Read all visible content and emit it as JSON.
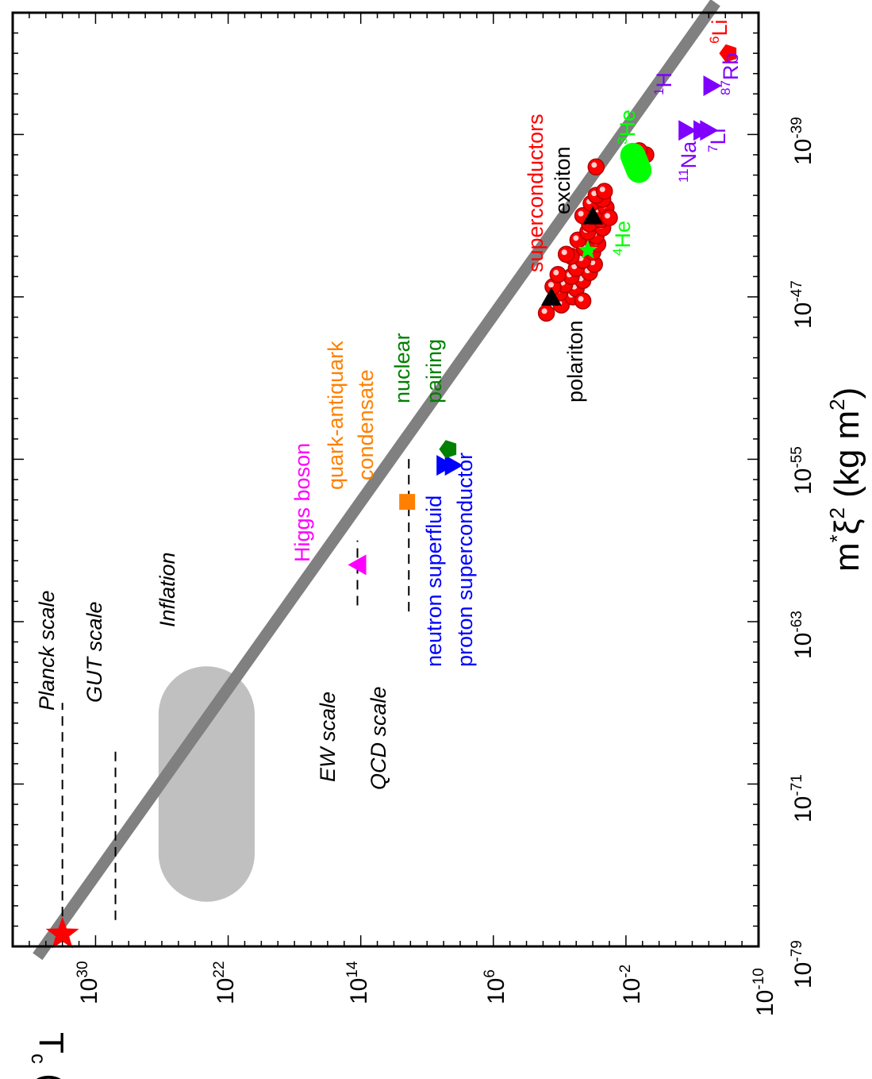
{
  "chart_data": {
    "type": "scatter",
    "orientation": "rotated 90 degrees counter-clockwise",
    "xlabel": "m*ξ² (kg m²)",
    "ylabel": "T_c (K)",
    "xscale": "log",
    "yscale": "log",
    "xlim_exp": [
      -79,
      -33
    ],
    "ylim_exp": [
      -10,
      35
    ],
    "x_ticks": [
      {
        "base": "10",
        "exp": "-79"
      },
      {
        "base": "10",
        "exp": "-71"
      },
      {
        "base": "10",
        "exp": "-63"
      },
      {
        "base": "10",
        "exp": "-55"
      },
      {
        "base": "10",
        "exp": "-47"
      },
      {
        "base": "10",
        "exp": "-39"
      }
    ],
    "y_ticks": [
      {
        "base": "10",
        "exp": "30"
      },
      {
        "base": "10",
        "exp": "22"
      },
      {
        "base": "10",
        "exp": "14"
      },
      {
        "base": "10",
        "exp": "6"
      },
      {
        "base": "10",
        "exp": "-2"
      },
      {
        "base": "10",
        "exp": "-10"
      }
    ],
    "trend_line": {
      "color": "#808080",
      "x_exp": [
        -79.5,
        -32.5
      ],
      "y_exp": [
        33.5,
        -7.4
      ]
    },
    "regions": [
      {
        "name": "Inflation",
        "x_exp": [
          -76.8,
          -65.2
        ],
        "y_exp": [
          20.4,
          26.2
        ],
        "color": "#c0c0c0"
      }
    ],
    "scales": [
      {
        "label": "Planck scale",
        "log_T": 32.0,
        "x_exp": [
          -78.3,
          -67.0
        ]
      },
      {
        "label": "GUT scale",
        "log_T": 28.8,
        "x_exp": [
          -77.7,
          -69.2
        ]
      },
      {
        "label": "EW scale",
        "log_T": 14.2,
        "x_exp": [
          -62.2,
          -59.0
        ]
      },
      {
        "label": "QCD scale",
        "log_T": 11.1,
        "x_exp": [
          -62.5,
          -54.8
        ]
      }
    ],
    "points": [
      {
        "name": "Planck",
        "x_exp": -78.4,
        "y_exp": 32.0,
        "marker": "star",
        "color": "#ff0000"
      },
      {
        "name": "Higgs boson",
        "x_exp": -60.2,
        "y_exp": 14.2,
        "marker": "triangle-up",
        "color": "#ff00ff"
      },
      {
        "name": "quark-antiquark condensate",
        "x_exp": -57.1,
        "y_exp": 11.2,
        "marker": "square",
        "color": "#ff8000"
      },
      {
        "name": "neutron superfluid",
        "x_exp": -55.3,
        "y_exp": 8.9,
        "marker": "triangle-down",
        "color": "#0000ff"
      },
      {
        "name": "proton superconductor",
        "x_exp": -55.3,
        "y_exp": 8.4,
        "marker": "triangle-down",
        "color": "#0000ff"
      },
      {
        "name": "nuclear pairing",
        "x_exp": -54.5,
        "y_exp": 8.7,
        "marker": "pentagon",
        "color": "#008000"
      },
      {
        "name": "polariton",
        "x_exp": -47.0,
        "y_exp": 2.5,
        "marker": "triangle-left",
        "color": "#000000"
      },
      {
        "name": "exciton",
        "x_exp": -43.0,
        "y_exp": 0.0,
        "marker": "triangle-left",
        "color": "#000000"
      },
      {
        "name": "4He",
        "x_exp": -44.7,
        "y_exp": 0.3,
        "marker": "star",
        "color": "#00ff00"
      },
      {
        "name": "3He",
        "x_exp": -40.4,
        "y_exp": -2.6,
        "marker": "pill",
        "color": "#00ff00"
      },
      {
        "name": "1H",
        "x_exp": -38.8,
        "y_exp": -5.7,
        "marker": "triangle-down",
        "color": "#8000ff"
      },
      {
        "name": "11Na",
        "x_exp": -38.8,
        "y_exp": -6.6,
        "marker": "triangle-down",
        "color": "#8000ff"
      },
      {
        "name": "7Li",
        "x_exp": -38.8,
        "y_exp": -7.0,
        "marker": "triangle-down",
        "color": "#8000ff"
      },
      {
        "name": "87Rb",
        "x_exp": -36.6,
        "y_exp": -7.2,
        "marker": "triangle-down",
        "color": "#8000ff"
      },
      {
        "name": "6Li",
        "x_exp": -35.0,
        "y_exp": -8.2,
        "marker": "pentagon",
        "color": "#ff0000"
      }
    ],
    "superconductors": {
      "color": "#ff0000",
      "marker": "circle",
      "points": [
        [
          -47.8,
          2.8
        ],
        [
          -47.4,
          1.9
        ],
        [
          -47.0,
          1.2
        ],
        [
          -46.8,
          2.0
        ],
        [
          -46.6,
          1.0
        ],
        [
          -46.4,
          1.7
        ],
        [
          -46.2,
          0.6
        ],
        [
          -46.0,
          1.3
        ],
        [
          -45.8,
          0.2
        ],
        [
          -45.6,
          1.0
        ],
        [
          -45.4,
          -0.1
        ],
        [
          -45.2,
          0.6
        ],
        [
          -45.0,
          1.3
        ],
        [
          -44.8,
          0.0
        ],
        [
          -44.6,
          0.5
        ],
        [
          -44.4,
          -0.3
        ],
        [
          -44.2,
          0.9
        ],
        [
          -44.0,
          -0.2
        ],
        [
          -43.8,
          0.3
        ],
        [
          -43.6,
          -0.6
        ],
        [
          -43.4,
          0.2
        ],
        [
          -43.2,
          -0.5
        ],
        [
          -43.0,
          0.6
        ],
        [
          -42.8,
          -0.4
        ],
        [
          -42.6,
          -0.8
        ],
        [
          -42.4,
          0.1
        ],
        [
          -42.2,
          -0.6
        ],
        [
          -42.0,
          -0.2
        ],
        [
          -41.8,
          -0.7
        ],
        [
          -40.6,
          -0.2
        ],
        [
          -40.2,
          -2.5
        ],
        [
          -40.0,
          -3.2
        ],
        [
          -39.8,
          -2.8
        ],
        [
          -46.5,
          2.4
        ],
        [
          -45.9,
          2.1
        ],
        [
          -44.9,
          1.6
        ],
        [
          -47.2,
          0.6
        ],
        [
          -43.1,
          -1.0
        ]
      ]
    }
  },
  "annotations": {
    "planck": "Planck scale",
    "gut": "GUT scale",
    "inflation": "Inflation",
    "ew": "EW scale",
    "qcd": "QCD scale",
    "higgs": "Higgs boson",
    "quark1": "quark-antiquark",
    "quark2": "condensate",
    "nuclear1": "nuclear",
    "nuclear2": "pairing",
    "neutron": "neutron superfluid",
    "proton": "proton superconductor",
    "polariton": "polariton",
    "exciton": "exciton",
    "superconductors": "superconductors",
    "he4": {
      "mass": "4",
      "sym": "He"
    },
    "he3": {
      "mass": "3",
      "sym": "He"
    },
    "h1": {
      "mass": "1",
      "sym": "H"
    },
    "na11": {
      "mass": "11",
      "sym": "Na"
    },
    "li7": {
      "mass": "7",
      "sym": "Li"
    },
    "rb87": {
      "mass": "87",
      "sym": "Rb"
    },
    "li6": {
      "mass": "6",
      "sym": "Li"
    }
  },
  "axis_labels": {
    "x_main": "m",
    "x_star": "*",
    "x_xi": "ξ",
    "x_two": "2",
    "x_unit": " (kg m",
    "x_unit2": "2",
    "x_close": ")",
    "y_T": "T",
    "y_c": "c",
    "y_unit": " (K)"
  },
  "colors": {
    "red": "#ff0000",
    "magenta": "#ff00ff",
    "orange": "#ff8000",
    "blue": "#0000ff",
    "green": "#008000",
    "lime": "#00ff00",
    "purple": "#8000ff",
    "gray": "#808080",
    "lightgray": "#c0c0c0"
  }
}
